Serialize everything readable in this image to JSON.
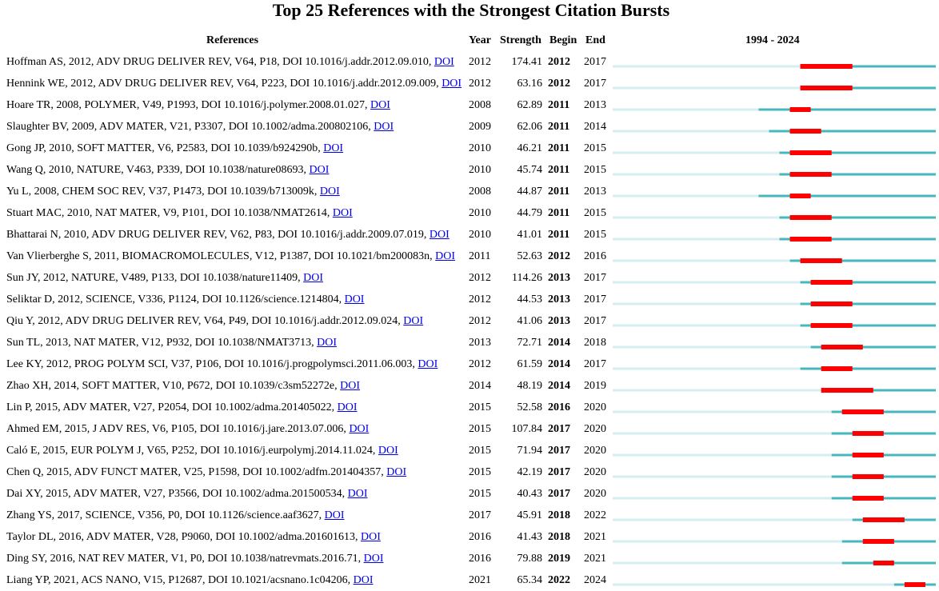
{
  "title": "Top 25 References with the Strongest Citation Bursts",
  "headers": {
    "references": "References",
    "year": "Year",
    "strength": "Strength",
    "begin": "Begin",
    "end": "End",
    "range": "1994 - 2024"
  },
  "colors": {
    "pre_publication": "#d6eef0",
    "active": "#44b8bc",
    "burst": "#ff0000",
    "link": "#0000ee"
  },
  "chart_data": {
    "type": "table",
    "title": "Top 25 References with the Strongest Citation Bursts",
    "range_start": 1994,
    "range_end": 2024,
    "columns": [
      "References",
      "Year",
      "Strength",
      "Begin",
      "End",
      "1994 - 2024"
    ],
    "rows": [
      {
        "ref": "Hoffman AS, 2012, ADV DRUG DELIVER REV, V64, P18, DOI 10.1016/j.addr.2012.09.010,",
        "link": "DOI",
        "year": 2012,
        "strength": "174.41",
        "begin": 2012,
        "end": 2017
      },
      {
        "ref": "Hennink WE, 2012, ADV DRUG DELIVER REV, V64, P223, DOI 10.1016/j.addr.2012.09.009,",
        "link": "DOI",
        "year": 2012,
        "strength": "63.16",
        "begin": 2012,
        "end": 2017
      },
      {
        "ref": "Hoare TR, 2008, POLYMER, V49, P1993, DOI 10.1016/j.polymer.2008.01.027,",
        "link": "DOI",
        "year": 2008,
        "strength": "62.89",
        "begin": 2011,
        "end": 2013
      },
      {
        "ref": "Slaughter BV, 2009, ADV MATER, V21, P3307, DOI 10.1002/adma.200802106,",
        "link": "DOI",
        "year": 2009,
        "strength": "62.06",
        "begin": 2011,
        "end": 2014
      },
      {
        "ref": "Gong JP, 2010, SOFT MATTER, V6, P2583, DOI 10.1039/b924290b,",
        "link": "DOI",
        "year": 2010,
        "strength": "46.21",
        "begin": 2011,
        "end": 2015
      },
      {
        "ref": "Wang Q, 2010, NATURE, V463, P339, DOI 10.1038/nature08693,",
        "link": "DOI",
        "year": 2010,
        "strength": "45.74",
        "begin": 2011,
        "end": 2015
      },
      {
        "ref": "Yu L, 2008, CHEM SOC REV, V37, P1473, DOI 10.1039/b713009k,",
        "link": "DOI",
        "year": 2008,
        "strength": "44.87",
        "begin": 2011,
        "end": 2013
      },
      {
        "ref": "Stuart MAC, 2010, NAT MATER, V9, P101, DOI 10.1038/NMAT2614,",
        "link": "DOI",
        "year": 2010,
        "strength": "44.79",
        "begin": 2011,
        "end": 2015
      },
      {
        "ref": "Bhattarai N, 2010, ADV DRUG DELIVER REV, V62, P83, DOI 10.1016/j.addr.2009.07.019,",
        "link": "DOI",
        "year": 2010,
        "strength": "41.01",
        "begin": 2011,
        "end": 2015
      },
      {
        "ref": "Van Vlierberghe S, 2011, BIOMACROMOLECULES, V12, P1387, DOI 10.1021/bm200083n,",
        "link": "DOI",
        "year": 2011,
        "strength": "52.63",
        "begin": 2012,
        "end": 2016
      },
      {
        "ref": "Sun JY, 2012, NATURE, V489, P133, DOI 10.1038/nature11409,",
        "link": "DOI",
        "year": 2012,
        "strength": "114.26",
        "begin": 2013,
        "end": 2017
      },
      {
        "ref": "Seliktar D, 2012, SCIENCE, V336, P1124, DOI 10.1126/science.1214804,",
        "link": "DOI",
        "year": 2012,
        "strength": "44.53",
        "begin": 2013,
        "end": 2017
      },
      {
        "ref": "Qiu Y, 2012, ADV DRUG DELIVER REV, V64, P49, DOI 10.1016/j.addr.2012.09.024,",
        "link": "DOI",
        "year": 2012,
        "strength": "41.06",
        "begin": 2013,
        "end": 2017
      },
      {
        "ref": "Sun TL, 2013, NAT MATER, V12, P932, DOI 10.1038/NMAT3713,",
        "link": "DOI",
        "year": 2013,
        "strength": "72.71",
        "begin": 2014,
        "end": 2018
      },
      {
        "ref": "Lee KY, 2012, PROG POLYM SCI, V37, P106, DOI 10.1016/j.progpolymsci.2011.06.003,",
        "link": "DOI",
        "year": 2012,
        "strength": "61.59",
        "begin": 2014,
        "end": 2017
      },
      {
        "ref": "Zhao XH, 2014, SOFT MATTER, V10, P672, DOI 10.1039/c3sm52272e,",
        "link": "DOI",
        "year": 2014,
        "strength": "48.19",
        "begin": 2014,
        "end": 2019
      },
      {
        "ref": "Lin P, 2015, ADV MATER, V27, P2054, DOI 10.1002/adma.201405022,",
        "link": "DOI",
        "year": 2015,
        "strength": "52.58",
        "begin": 2016,
        "end": 2020
      },
      {
        "ref": "Ahmed EM, 2015, J ADV RES, V6, P105, DOI 10.1016/j.jare.2013.07.006,",
        "link": "DOI",
        "year": 2015,
        "strength": "107.84",
        "begin": 2017,
        "end": 2020
      },
      {
        "ref": "Caló E, 2015, EUR POLYM J, V65, P252, DOI 10.1016/j.eurpolymj.2014.11.024,",
        "link": "DOI",
        "year": 2015,
        "strength": "71.94",
        "begin": 2017,
        "end": 2020
      },
      {
        "ref": "Chen Q, 2015, ADV FUNCT MATER, V25, P1598, DOI 10.1002/adfm.201404357,",
        "link": "DOI",
        "year": 2015,
        "strength": "42.19",
        "begin": 2017,
        "end": 2020
      },
      {
        "ref": "Dai XY, 2015, ADV MATER, V27, P3566, DOI 10.1002/adma.201500534,",
        "link": "DOI",
        "year": 2015,
        "strength": "40.43",
        "begin": 2017,
        "end": 2020
      },
      {
        "ref": "Zhang YS, 2017, SCIENCE, V356, P0, DOI 10.1126/science.aaf3627,",
        "link": "DOI",
        "year": 2017,
        "strength": "45.91",
        "begin": 2018,
        "end": 2022
      },
      {
        "ref": "Taylor DL, 2016, ADV MATER, V28, P9060, DOI 10.1002/adma.201601613,",
        "link": "DOI",
        "year": 2016,
        "strength": "41.43",
        "begin": 2018,
        "end": 2021
      },
      {
        "ref": "Ding SY, 2016, NAT REV MATER, V1, P0, DOI 10.1038/natrevmats.2016.71,",
        "link": "DOI",
        "year": 2016,
        "strength": "79.88",
        "begin": 2019,
        "end": 2021
      },
      {
        "ref": "Liang YP, 2021, ACS NANO, V15, P12687, DOI 10.1021/acsnano.1c04206,",
        "link": "DOI",
        "year": 2021,
        "strength": "65.34",
        "begin": 2022,
        "end": 2024
      }
    ]
  }
}
